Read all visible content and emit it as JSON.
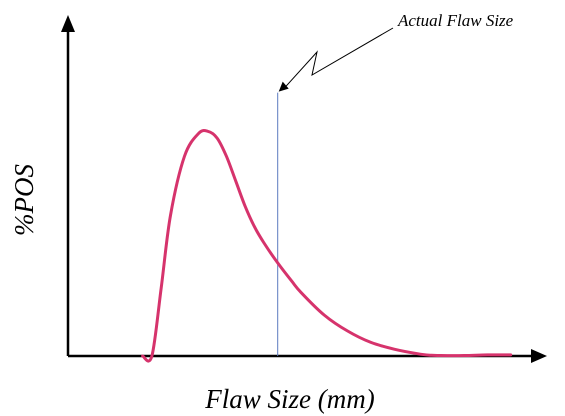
{
  "chart_data": {
    "type": "line",
    "title": "",
    "xlabel": "Flaw Size (mm)",
    "ylabel": "%POS",
    "xlim": [
      0,
      10
    ],
    "ylim": [
      0,
      1
    ],
    "grid": false,
    "series": [
      {
        "name": "",
        "color": "#d6336c",
        "x": [
          1.6,
          1.8,
          2.0,
          2.2,
          2.5,
          2.8,
          3.0,
          3.2,
          3.4,
          3.6,
          3.8,
          4.0,
          4.2,
          4.5,
          4.8,
          5.0,
          5.5,
          6.0,
          6.5,
          7.0,
          7.5,
          7.8,
          8.0,
          8.5,
          9.0,
          9.5
        ],
        "y": [
          0.0,
          0.0,
          0.3,
          0.62,
          0.88,
          0.98,
          0.99,
          0.96,
          0.88,
          0.77,
          0.66,
          0.57,
          0.5,
          0.41,
          0.33,
          0.28,
          0.18,
          0.11,
          0.06,
          0.03,
          0.01,
          0.003,
          0.002,
          0.002,
          0.005,
          0.005
        ]
      }
    ],
    "markers": [
      {
        "label": "Actual Flaw Size",
        "x": 4.5,
        "y_top": 1.16,
        "color": "#5b7bbf"
      }
    ]
  }
}
